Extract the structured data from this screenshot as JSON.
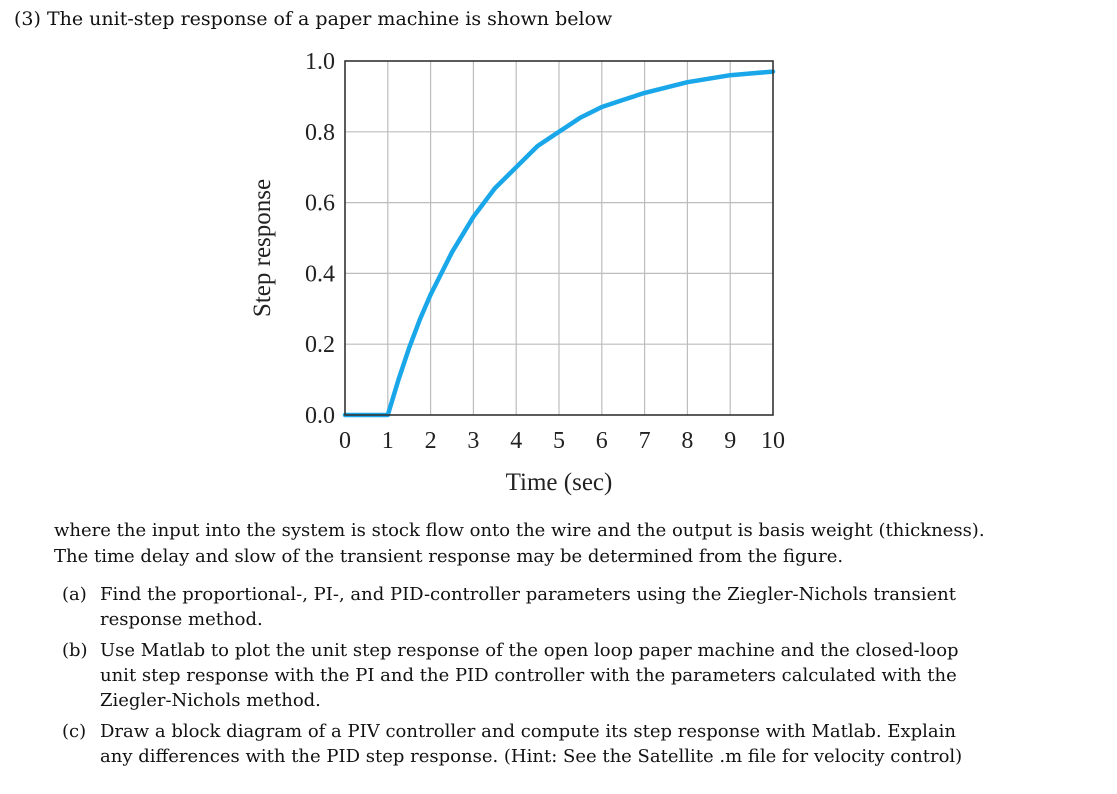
{
  "heading": "(3) The unit-step response of a paper machine is shown below",
  "chart_data": {
    "type": "line",
    "xlabel": "Time (sec)",
    "ylabel": "Step response",
    "xlim": [
      0,
      10
    ],
    "ylim": [
      0.0,
      1.0
    ],
    "x_ticks": [
      "0",
      "1",
      "2",
      "3",
      "4",
      "5",
      "6",
      "7",
      "8",
      "9",
      "10"
    ],
    "y_ticks": [
      "0.0",
      "0.2",
      "0.4",
      "0.6",
      "0.8",
      "1.0"
    ],
    "grid": true,
    "line_color": "#1aa7ea",
    "series": [
      {
        "x": [
          0,
          0.5,
          1,
          1.25,
          1.5,
          1.75,
          2,
          2.5,
          3,
          3.5,
          4,
          4.5,
          5,
          5.5,
          6,
          6.5,
          7,
          7.5,
          8,
          8.5,
          9,
          9.5,
          10
        ],
        "values": [
          0,
          0,
          0,
          0.1,
          0.19,
          0.27,
          0.34,
          0.46,
          0.56,
          0.64,
          0.7,
          0.76,
          0.8,
          0.84,
          0.87,
          0.89,
          0.91,
          0.925,
          0.94,
          0.95,
          0.96,
          0.965,
          0.97
        ]
      }
    ]
  },
  "paragraph": [
    "where the input into the system is stock flow onto the wire and the output is basis weight (thickness).",
    "The time delay and slow of the transient response may be determined from the figure."
  ],
  "items": [
    {
      "marker": "(a)",
      "lines": [
        "Find the proportional-, PI-, and PID-controller parameters using the Ziegler-Nichols transient",
        "response method."
      ]
    },
    {
      "marker": "(b)",
      "lines": [
        "Use Matlab to plot the unit step response of the open loop paper machine and the closed-loop",
        "unit step response with the PI and the PID controller with the parameters calculated with the",
        "Ziegler-Nichols method."
      ]
    },
    {
      "marker": "(c)",
      "lines": [
        "Draw a block diagram of a PIV controller and compute its step response with Matlab. Explain",
        "any differences with the PID step response. (Hint: See the Satellite .m file for velocity control)"
      ]
    }
  ]
}
